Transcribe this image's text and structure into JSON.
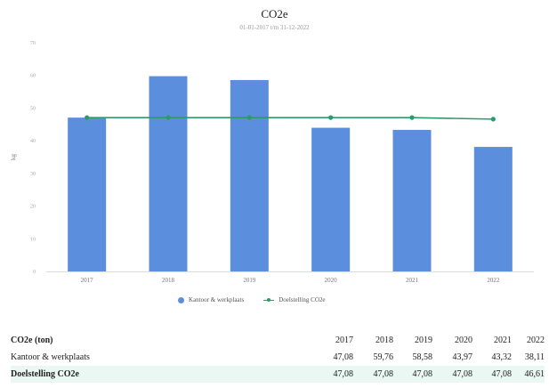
{
  "chart_data": {
    "type": "bar",
    "title": "CO2e",
    "subtitle": "01-01-2017 t/m 31-12-2022",
    "ylabel": "kg",
    "ylim": [
      0,
      70
    ],
    "yticks": [
      0,
      10,
      20,
      30,
      40,
      50,
      60,
      70
    ],
    "categories": [
      "2017",
      "2018",
      "2019",
      "2020",
      "2021",
      "2022"
    ],
    "series": [
      {
        "name": "Kantoor & werkplaats",
        "kind": "bar",
        "color": "#5b8fde",
        "values": [
          47.08,
          59.76,
          58.58,
          43.97,
          43.32,
          38.11
        ]
      },
      {
        "name": "Doelstelling CO2e",
        "kind": "line",
        "color": "#2e9a6b",
        "values": [
          47.08,
          47.08,
          47.08,
          47.08,
          47.08,
          46.61
        ]
      }
    ],
    "grid": false,
    "legend": "bottom"
  },
  "table": {
    "header_label": "CO2e (ton)",
    "years": [
      "2017",
      "2018",
      "2019",
      "2020",
      "2021",
      "2022"
    ],
    "rows": [
      {
        "label": "Kantoor & werkplaats",
        "values": [
          "47,08",
          "59,76",
          "58,58",
          "43,97",
          "43,32",
          "38,11"
        ]
      },
      {
        "label": "Doelstelling CO2e",
        "values": [
          "47,08",
          "47,08",
          "47,08",
          "47,08",
          "47,08",
          "46,61"
        ]
      }
    ]
  }
}
